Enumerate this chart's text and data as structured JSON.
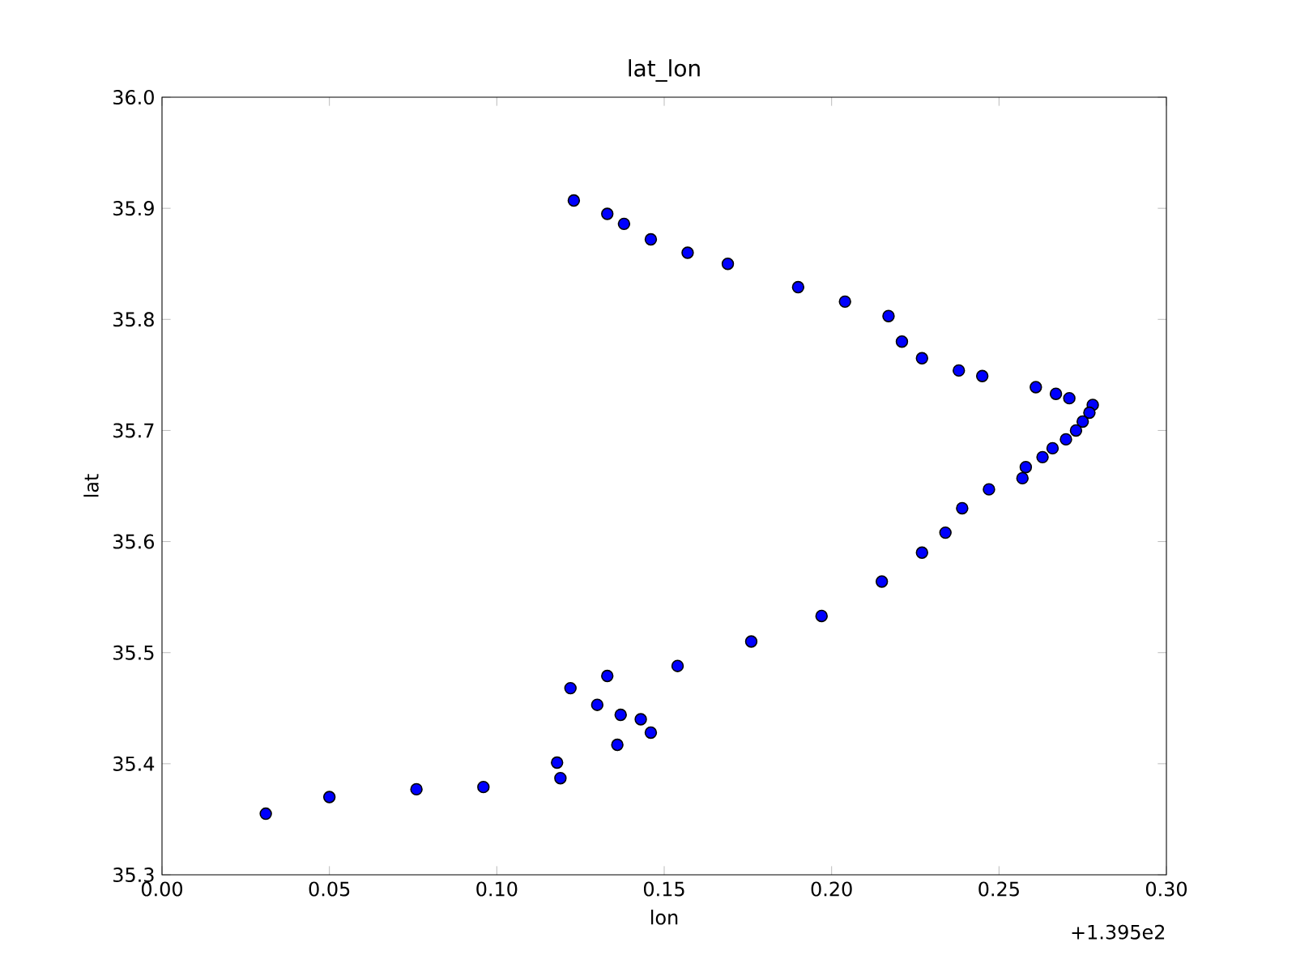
{
  "chart_data": {
    "type": "scatter",
    "title": "lat_lon",
    "xlabel": "lon",
    "ylabel": "lat",
    "annotations": [
      "+1.395e2"
    ],
    "x": [
      0.123,
      0.133,
      0.138,
      0.146,
      0.157,
      0.169,
      0.19,
      0.204,
      0.217,
      0.221,
      0.227,
      0.238,
      0.245,
      0.261,
      0.267,
      0.271,
      0.278,
      0.277,
      0.275,
      0.273,
      0.27,
      0.266,
      0.263,
      0.258,
      0.257,
      0.247,
      0.239,
      0.234,
      0.227,
      0.215,
      0.197,
      0.176,
      0.154,
      0.133,
      0.122,
      0.13,
      0.137,
      0.143,
      0.146,
      0.136,
      0.118,
      0.119,
      0.096,
      0.076,
      0.05,
      0.031
    ],
    "series": [
      {
        "color": "#0000ff",
        "values": [
          35.907,
          35.895,
          35.886,
          35.872,
          35.86,
          35.85,
          35.829,
          35.816,
          35.803,
          35.78,
          35.765,
          35.754,
          35.749,
          35.739,
          35.733,
          35.729,
          35.723,
          35.716,
          35.708,
          35.7,
          35.692,
          35.684,
          35.676,
          35.667,
          35.657,
          35.647,
          35.63,
          35.608,
          35.59,
          35.564,
          35.533,
          35.51,
          35.488,
          35.479,
          35.468,
          35.453,
          35.444,
          35.44,
          35.428,
          35.417,
          35.401,
          35.387,
          35.379,
          35.377,
          35.37,
          35.355
        ]
      }
    ],
    "xlim": [
      0,
      0.3
    ],
    "xticks": [
      {
        "value": 0,
        "label": "0.00"
      },
      0.05,
      {
        "value": 0.1,
        "label": "0.10"
      },
      0.15,
      {
        "value": 0.2,
        "label": "0.20"
      },
      0.25,
      {
        "value": 0.3,
        "label": "0.30"
      }
    ],
    "ylim": [
      35.3,
      36
    ],
    "yticks": [
      35.3,
      35.4,
      35.5,
      35.6,
      35.7,
      35.8,
      35.9,
      {
        "value": 36,
        "label": "36.0"
      }
    ],
    "grid": false,
    "marker": "circle"
  }
}
